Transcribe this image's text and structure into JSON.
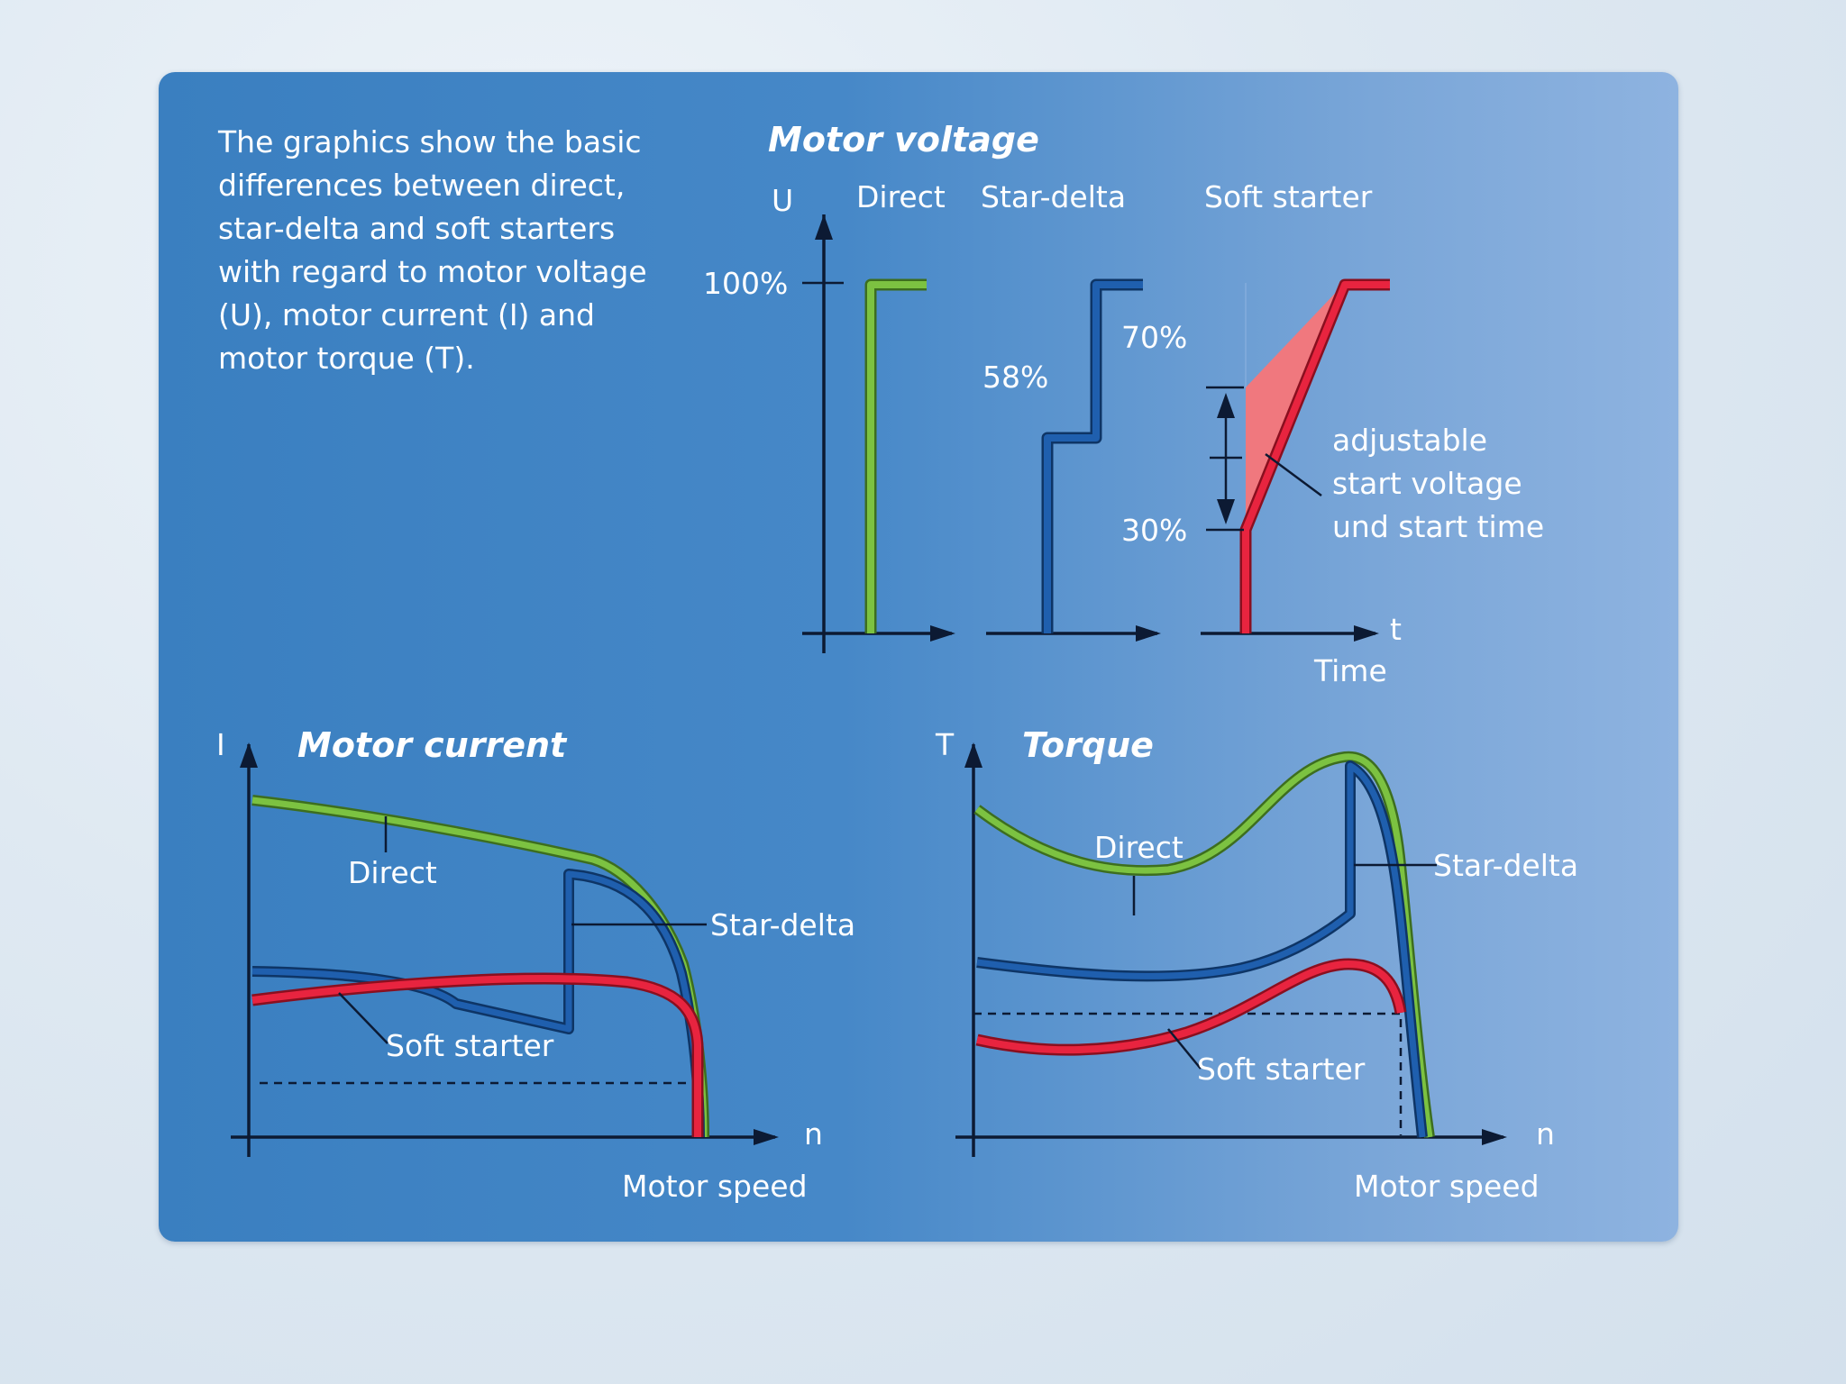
{
  "intro": {
    "lines": [
      "The graphics show the basic",
      "differences between direct,",
      "star-delta and soft starters",
      "with regard to motor voltage",
      "(U), motor current (I) and",
      "motor torque (T)."
    ]
  },
  "voltage": {
    "title": "Motor voltage",
    "y_axis": "U",
    "x_axis": "t",
    "x_label": "Time",
    "columns": [
      "Direct",
      "Star-delta",
      "Soft starter"
    ],
    "levels": [
      "100%",
      "58%",
      "70%",
      "30%"
    ],
    "note": [
      "adjustable",
      "start voltage",
      "und start time"
    ]
  },
  "current": {
    "title": "Motor current",
    "y_axis": "I",
    "x_axis": "n",
    "x_label": "Motor speed",
    "labels": {
      "direct": "Direct",
      "star_delta": "Star-delta",
      "soft": "Soft starter"
    }
  },
  "torque": {
    "title": "Torque",
    "y_axis": "T",
    "x_axis": "n",
    "x_label": "Motor speed",
    "labels": {
      "direct": "Direct",
      "star_delta": "Star-delta",
      "soft": "Soft starter"
    }
  },
  "colors": {
    "direct": "#7cc241",
    "star_delta": "#1f5fae",
    "soft_starter": "#e8243f",
    "soft_fill": "#f0787e",
    "panel": "#3a7fc0",
    "text": "#ffffff",
    "axis": "#0c1a33"
  }
}
